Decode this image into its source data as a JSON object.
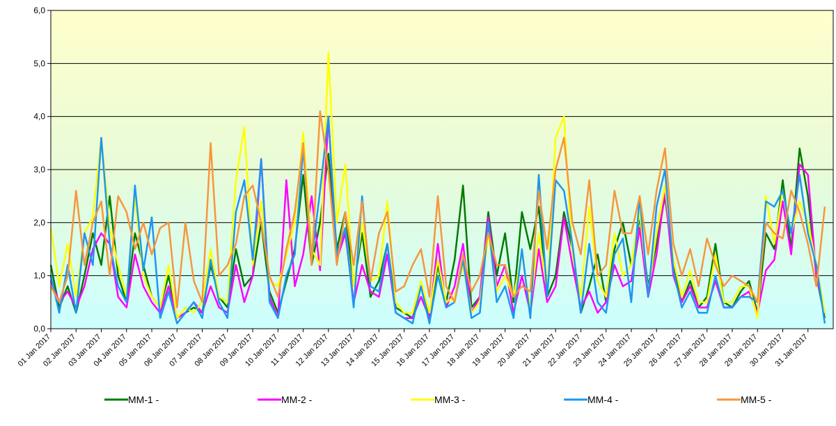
{
  "chart_data": {
    "type": "line",
    "categories": [
      "01 Jan 2017",
      null,
      null,
      "02 Jan 2017",
      null,
      null,
      "03 Jan 2017",
      null,
      null,
      "04 Jan 2017",
      null,
      null,
      "05 Jan 2017",
      null,
      null,
      "06 Jan 2017",
      null,
      null,
      "07 Jan 2017",
      null,
      null,
      "08 Jan 2017",
      null,
      null,
      "09 Jan 2017",
      null,
      null,
      "10 Jan 2017",
      null,
      null,
      "11 Jan 2017",
      null,
      null,
      "12 Jan 2017",
      null,
      null,
      "13 Jan 2017",
      null,
      null,
      "14 Jan 2017",
      null,
      null,
      "15 Jan 2017",
      null,
      null,
      "16 Jan 2017",
      null,
      null,
      "17 Jan 2017",
      null,
      null,
      "18 Jan 2017",
      null,
      null,
      "19 Jan 2017",
      null,
      null,
      "20 Jan 2017",
      null,
      null,
      "21 Jan 2017",
      null,
      null,
      "22 Jan 2017",
      null,
      null,
      "23 Jan 2017",
      null,
      null,
      "24 Jan 2017",
      null,
      null,
      "25 Jan 2017",
      null,
      null,
      "26 Jan 2017",
      null,
      null,
      "27 Jan 2017",
      null,
      null,
      "28 Jan 2017",
      null,
      null,
      "29 Jan 2017",
      null,
      null,
      "30 Jan 2017",
      null,
      null,
      "31 Jan 2017",
      null,
      null
    ],
    "series": [
      {
        "name": "MM-1 -",
        "color": "#007a00",
        "values": [
          1.2,
          0.4,
          0.8,
          0.3,
          1.0,
          1.8,
          1.2,
          2.5,
          1.0,
          0.5,
          1.8,
          1.2,
          0.6,
          0.4,
          1.0,
          0.2,
          0.3,
          0.4,
          0.3,
          1.2,
          0.6,
          0.4,
          1.5,
          0.8,
          1.0,
          2.0,
          0.7,
          0.3,
          0.9,
          1.5,
          2.9,
          1.2,
          2.0,
          3.3,
          1.5,
          2.2,
          0.8,
          1.8,
          0.6,
          0.9,
          1.6,
          0.4,
          0.3,
          0.2,
          0.8,
          0.2,
          1.2,
          0.5,
          1.3,
          2.7,
          0.4,
          0.6,
          2.2,
          1.0,
          1.8,
          0.5,
          2.2,
          1.5,
          2.3,
          0.6,
          1.0,
          2.2,
          1.5,
          0.3,
          0.8,
          1.4,
          0.5,
          1.5,
          2.0,
          1.2,
          2.1,
          0.8,
          1.6,
          2.5,
          1.2,
          0.5,
          0.9,
          0.4,
          0.6,
          1.6,
          0.5,
          0.4,
          0.7,
          0.9,
          0.3,
          1.8,
          1.5,
          2.8,
          1.5,
          3.4,
          2.5,
          1.0,
          0.2
        ]
      },
      {
        "name": "MM-2 -",
        "color": "#ff00ff",
        "values": [
          0.9,
          0.5,
          0.7,
          0.4,
          0.8,
          1.5,
          1.8,
          1.6,
          0.6,
          0.4,
          1.4,
          0.8,
          0.5,
          0.3,
          0.8,
          0.2,
          0.3,
          0.5,
          0.3,
          0.8,
          0.4,
          0.3,
          1.2,
          0.5,
          1.0,
          3.2,
          0.6,
          0.2,
          2.8,
          0.8,
          1.4,
          2.5,
          1.1,
          4.0,
          1.3,
          1.8,
          0.5,
          1.2,
          0.7,
          0.6,
          1.4,
          0.3,
          0.2,
          0.2,
          0.6,
          0.2,
          1.6,
          0.4,
          0.8,
          1.6,
          0.3,
          0.6,
          2.1,
          0.8,
          1.2,
          0.3,
          1.0,
          0.3,
          1.5,
          0.5,
          0.8,
          2.1,
          1.2,
          0.4,
          0.7,
          0.3,
          0.5,
          1.2,
          0.8,
          0.9,
          1.9,
          0.6,
          1.4,
          2.6,
          1.0,
          0.5,
          0.8,
          0.4,
          0.4,
          0.9,
          0.4,
          0.4,
          0.6,
          0.7,
          0.3,
          1.1,
          1.3,
          2.4,
          1.4,
          3.1,
          2.9,
          1.0,
          0.3
        ]
      },
      {
        "name": "MM-3 -",
        "color": "#ffff00",
        "values": [
          1.9,
          0.8,
          1.6,
          0.6,
          1.8,
          2.1,
          3.6,
          1.9,
          1.2,
          0.6,
          2.5,
          1.0,
          0.6,
          0.4,
          1.2,
          0.2,
          0.4,
          0.3,
          0.5,
          1.5,
          0.6,
          0.5,
          2.8,
          3.8,
          1.2,
          2.4,
          0.9,
          0.8,
          1.4,
          2.0,
          3.7,
          1.5,
          1.2,
          5.2,
          2.0,
          3.1,
          0.8,
          2.0,
          0.9,
          1.0,
          2.4,
          0.5,
          0.3,
          0.3,
          0.9,
          0.3,
          1.3,
          0.5,
          0.6,
          1.2,
          0.3,
          0.5,
          1.8,
          0.7,
          1.0,
          0.6,
          1.4,
          0.4,
          1.8,
          0.7,
          3.6,
          4.0,
          1.4,
          0.6,
          2.3,
          0.9,
          0.6,
          1.8,
          1.0,
          1.2,
          2.2,
          0.7,
          1.8,
          2.7,
          1.3,
          0.6,
          1.1,
          0.5,
          0.5,
          1.4,
          0.5,
          0.5,
          0.8,
          0.8,
          0.2,
          2.5,
          1.6,
          2.6,
          1.8,
          2.4,
          2.0,
          1.2,
          0.3
        ]
      },
      {
        "name": "MM-4 -",
        "color": "#1e96f0",
        "values": [
          1.0,
          0.3,
          1.2,
          0.3,
          1.8,
          1.2,
          3.6,
          1.6,
          0.8,
          0.5,
          2.7,
          1.1,
          2.1,
          0.2,
          0.7,
          0.1,
          0.3,
          0.5,
          0.2,
          1.3,
          0.5,
          0.2,
          2.2,
          2.8,
          1.3,
          3.2,
          0.5,
          0.2,
          1.0,
          1.4,
          3.4,
          1.3,
          2.6,
          4.0,
          1.4,
          1.9,
          0.4,
          2.5,
          0.8,
          0.7,
          1.6,
          0.3,
          0.2,
          0.1,
          0.8,
          0.1,
          1.0,
          0.4,
          0.5,
          1.3,
          0.2,
          0.3,
          2.0,
          0.5,
          0.8,
          0.2,
          1.5,
          0.2,
          2.9,
          0.6,
          2.8,
          2.6,
          1.6,
          0.3,
          1.6,
          0.5,
          0.3,
          1.4,
          1.7,
          0.5,
          2.5,
          0.6,
          2.3,
          3.0,
          1.1,
          0.4,
          0.7,
          0.3,
          0.3,
          1.0,
          0.4,
          0.4,
          0.6,
          0.6,
          0.5,
          2.4,
          2.3,
          2.6,
          1.8,
          2.9,
          1.8,
          1.2,
          0.1
        ]
      },
      {
        "name": "MM-5 -",
        "color": "#f7963c",
        "values": [
          0.8,
          0.5,
          1.0,
          2.6,
          1.2,
          2.0,
          2.4,
          1.0,
          2.5,
          2.2,
          1.5,
          2.0,
          1.4,
          1.9,
          2.0,
          0.4,
          2.0,
          0.9,
          0.5,
          3.5,
          1.0,
          1.2,
          1.6,
          2.5,
          2.7,
          2.0,
          1.0,
          0.6,
          1.5,
          2.2,
          3.5,
          1.2,
          4.1,
          3.0,
          1.2,
          2.2,
          1.2,
          2.4,
          0.9,
          1.8,
          2.2,
          0.7,
          0.8,
          1.2,
          1.5,
          0.6,
          2.5,
          0.8,
          0.5,
          1.4,
          0.7,
          1.0,
          1.8,
          1.2,
          1.2,
          0.6,
          0.8,
          0.7,
          2.6,
          1.5,
          3.0,
          3.6,
          2.0,
          1.4,
          2.8,
          1.0,
          1.2,
          2.6,
          1.8,
          1.8,
          2.5,
          1.4,
          2.6,
          3.4,
          1.6,
          1.0,
          1.5,
          0.8,
          1.7,
          1.2,
          0.8,
          1.0,
          0.9,
          0.8,
          0.5,
          2.0,
          1.8,
          1.7,
          2.6,
          2.2,
          1.6,
          0.8,
          2.3
        ]
      }
    ],
    "ylim": [
      0,
      6
    ],
    "yticks": [
      {
        "value": 0,
        "label": "0,0"
      },
      {
        "value": 1,
        "label": "1,0"
      },
      {
        "value": 2,
        "label": "2,0"
      },
      {
        "value": 3,
        "label": "3,0"
      },
      {
        "value": 4,
        "label": "4,0"
      },
      {
        "value": 5,
        "label": "5,0"
      },
      {
        "value": 6,
        "label": "6,0"
      }
    ],
    "grid": true,
    "legend_position": "bottom"
  }
}
